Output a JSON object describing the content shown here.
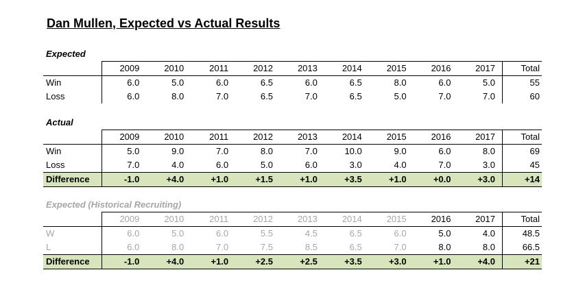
{
  "title": "Dan Mullen, Expected vs Actual Results",
  "years": [
    "2009",
    "2010",
    "2011",
    "2012",
    "2013",
    "2014",
    "2015",
    "2016",
    "2017"
  ],
  "total_label": "Total",
  "sections": [
    {
      "label": "Expected",
      "rows": [
        {
          "label": "Win",
          "values": [
            "6.0",
            "5.0",
            "6.0",
            "6.5",
            "6.0",
            "6.5",
            "8.0",
            "6.0",
            "5.0"
          ],
          "total": "55"
        },
        {
          "label": "Loss",
          "values": [
            "6.0",
            "8.0",
            "7.0",
            "6.5",
            "7.0",
            "6.5",
            "5.0",
            "7.0",
            "7.0"
          ],
          "total": "60"
        }
      ]
    },
    {
      "label": "Actual",
      "rows": [
        {
          "label": "Win",
          "values": [
            "5.0",
            "9.0",
            "7.0",
            "8.0",
            "7.0",
            "10.0",
            "9.0",
            "6.0",
            "8.0"
          ],
          "total": "69"
        },
        {
          "label": "Loss",
          "values": [
            "7.0",
            "4.0",
            "6.0",
            "5.0",
            "6.0",
            "3.0",
            "4.0",
            "7.0",
            "3.0"
          ],
          "total": "45"
        }
      ],
      "difference": {
        "label": "Difference",
        "values": [
          "-1.0",
          "+4.0",
          "+1.0",
          "+1.5",
          "+1.0",
          "+3.5",
          "+1.0",
          "+0.0",
          "+3.0"
        ],
        "total": "+14"
      }
    },
    {
      "label": "Expected (Historical Recruiting)",
      "rows": [
        {
          "label": "W",
          "values": [
            "6.0",
            "5.0",
            "6.0",
            "5.5",
            "4.5",
            "6.5",
            "6.0",
            "5.0",
            "4.0"
          ],
          "total": "48.5"
        },
        {
          "label": "L",
          "values": [
            "6.0",
            "8.0",
            "7.0",
            "7.5",
            "8.5",
            "6.5",
            "7.0",
            "8.0",
            "8.0"
          ],
          "total": "66.5"
        }
      ],
      "difference": {
        "label": "Difference",
        "values": [
          "-1.0",
          "+4.0",
          "+1.0",
          "+2.5",
          "+2.5",
          "+3.5",
          "+3.0",
          "+1.0",
          "+4.0"
        ],
        "total": "+21"
      }
    }
  ]
}
